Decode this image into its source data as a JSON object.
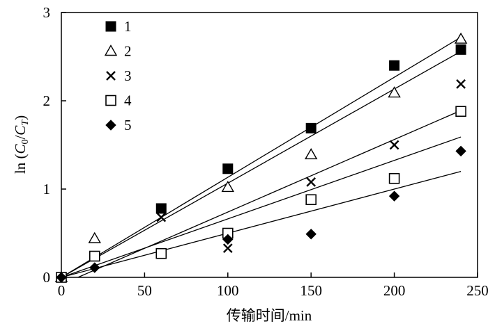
{
  "chart_data": {
    "type": "scatter",
    "title": "",
    "xlabel": "传输时间/min",
    "ylabel": "ln (C0/CT)",
    "ylabel_parts": {
      "prefix": "ln (",
      "c": "C",
      "c_sub": "0",
      "slash": "/",
      "t": "C",
      "t_sub": "T",
      "suffix": ")"
    },
    "xlim": [
      0,
      250
    ],
    "ylim": [
      0,
      3
    ],
    "xticks": [
      0,
      50,
      100,
      150,
      200,
      250
    ],
    "yticks": [
      0,
      1,
      2,
      3
    ],
    "grid": false,
    "legend_position": "top-left",
    "series": [
      {
        "name": "1",
        "marker": "filled-square",
        "points": [
          [
            0,
            0
          ],
          [
            60,
            0.78
          ],
          [
            100,
            1.23
          ],
          [
            150,
            1.69
          ],
          [
            200,
            2.4
          ],
          [
            240,
            2.58
          ]
        ],
        "fit": [
          [
            0,
            0
          ],
          [
            240,
            2.56
          ]
        ]
      },
      {
        "name": "2",
        "marker": "open-triangle",
        "points": [
          [
            0,
            0
          ],
          [
            20,
            0.44
          ],
          [
            100,
            1.02
          ],
          [
            150,
            1.39
          ],
          [
            200,
            2.09
          ],
          [
            240,
            2.7
          ]
        ],
        "fit": [
          [
            0,
            0
          ],
          [
            240,
            2.72
          ]
        ]
      },
      {
        "name": "3",
        "marker": "cross",
        "points": [
          [
            0,
            0
          ],
          [
            60,
            0.68
          ],
          [
            100,
            0.33
          ],
          [
            150,
            1.08
          ],
          [
            200,
            1.5
          ],
          [
            240,
            2.19
          ]
        ],
        "fit": [
          [
            0,
            0
          ],
          [
            240,
            1.59
          ]
        ]
      },
      {
        "name": "4",
        "marker": "open-square",
        "points": [
          [
            0,
            0
          ],
          [
            20,
            0.24
          ],
          [
            60,
            0.27
          ],
          [
            100,
            0.5
          ],
          [
            150,
            0.88
          ],
          [
            200,
            1.12
          ],
          [
            240,
            1.88
          ]
        ],
        "fit": [
          [
            10,
            0
          ],
          [
            240,
            1.89
          ]
        ]
      },
      {
        "name": "5",
        "marker": "filled-diamond",
        "points": [
          [
            0,
            0
          ],
          [
            20,
            0.11
          ],
          [
            100,
            0.43
          ],
          [
            150,
            0.49
          ],
          [
            200,
            0.92
          ],
          [
            240,
            1.43
          ]
        ],
        "fit": [
          [
            0,
            0
          ],
          [
            240,
            1.2
          ]
        ]
      }
    ]
  }
}
